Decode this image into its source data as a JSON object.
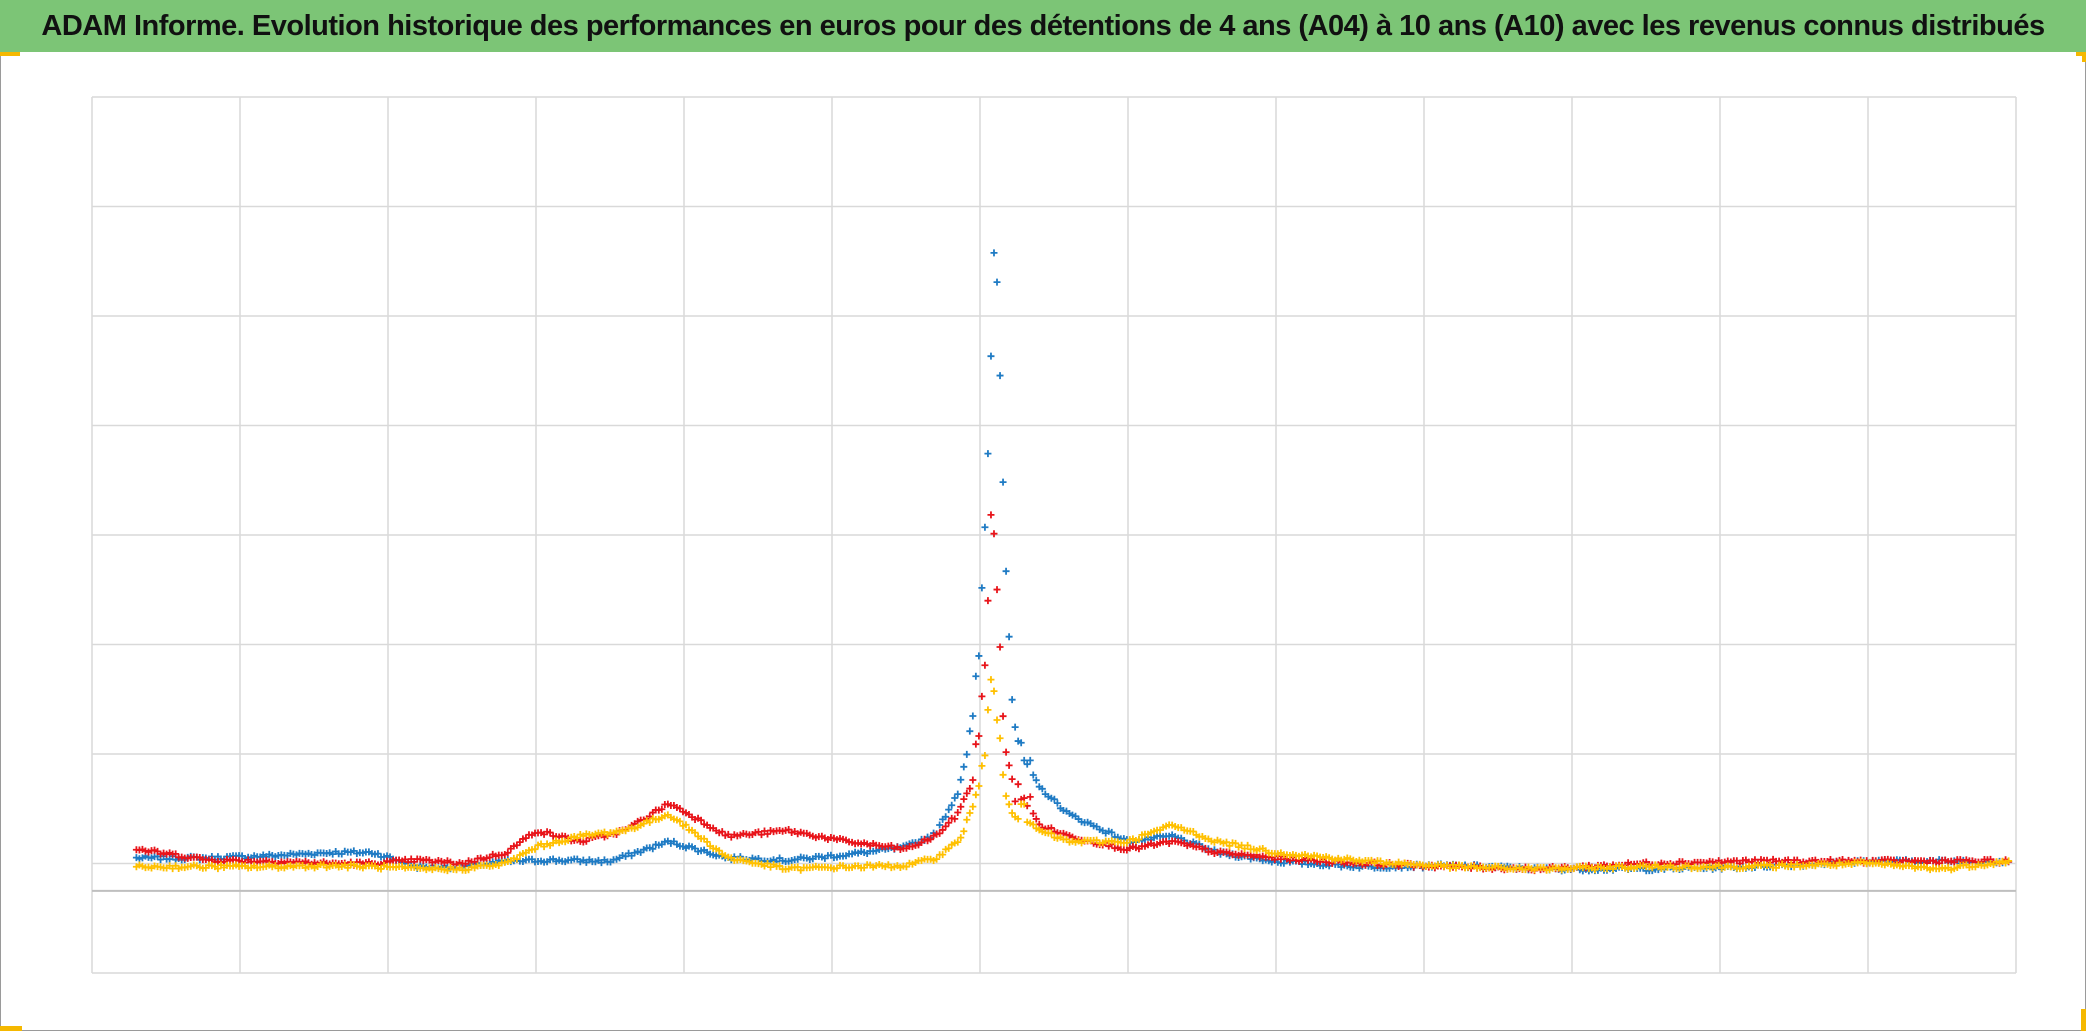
{
  "title": "ADAM Informe. Evolution historique des performances en euros pour des détentions de 4 ans (A04) à 10 ans (A10) avec les revenus connus distribués",
  "colors": {
    "title_bg": "#7cc576",
    "corner_accent": "#f5b800",
    "gridline": "#d9d9d9",
    "baseline": "#bfbfbf"
  },
  "chart_data": {
    "type": "scatter",
    "marker": "plus",
    "grid": true,
    "legend": "none",
    "title": "",
    "xlabel": "",
    "ylabel": "",
    "xlim": [
      0,
      13
    ],
    "ylim": [
      -0.75,
      7.25
    ],
    "y_baseline": 0,
    "series": [
      {
        "color": "#1f7bc4",
        "x": [
          0.3,
          0.8,
          1.2,
          1.6,
          1.9,
          2.2,
          2.5,
          2.8,
          3.1,
          3.5,
          3.9,
          4.3,
          4.7,
          5.1,
          5.5,
          5.7,
          5.85,
          5.95,
          6.0,
          6.03,
          6.06,
          6.08,
          6.1,
          6.13,
          6.15,
          6.18,
          6.22,
          6.27,
          6.4,
          6.6,
          7.0,
          7.3,
          7.6,
          8.0,
          8.6,
          9.2,
          9.8,
          10.5,
          11.2,
          12.0,
          12.5,
          12.95
        ],
        "y": [
          0.3,
          0.3,
          0.32,
          0.35,
          0.35,
          0.22,
          0.22,
          0.27,
          0.28,
          0.27,
          0.45,
          0.3,
          0.28,
          0.33,
          0.4,
          0.52,
          0.9,
          1.5,
          2.3,
          3.2,
          4.2,
          5.3,
          6.0,
          5.1,
          4.0,
          2.9,
          1.7,
          1.25,
          0.95,
          0.7,
          0.45,
          0.5,
          0.35,
          0.27,
          0.22,
          0.23,
          0.2,
          0.2,
          0.22,
          0.27,
          0.27,
          0.27
        ]
      },
      {
        "color": "#e8141a",
        "x": [
          0.3,
          0.8,
          1.2,
          1.6,
          1.9,
          2.2,
          2.5,
          2.8,
          3.0,
          3.3,
          3.6,
          3.9,
          4.3,
          4.7,
          5.1,
          5.5,
          5.7,
          5.85,
          5.95,
          6.0,
          6.03,
          6.06,
          6.08,
          6.1,
          6.13,
          6.15,
          6.18,
          6.22,
          6.27,
          6.4,
          6.6,
          7.0,
          7.3,
          7.6,
          8.0,
          8.6,
          9.2,
          9.8,
          10.5,
          11.2,
          12.0,
          12.5,
          12.95
        ],
        "y": [
          0.38,
          0.28,
          0.27,
          0.25,
          0.25,
          0.28,
          0.25,
          0.35,
          0.55,
          0.45,
          0.55,
          0.8,
          0.5,
          0.55,
          0.45,
          0.38,
          0.5,
          0.7,
          1.05,
          1.5,
          2.1,
          2.8,
          3.6,
          3.0,
          2.4,
          1.8,
          1.2,
          0.9,
          0.95,
          0.6,
          0.5,
          0.38,
          0.45,
          0.35,
          0.3,
          0.25,
          0.22,
          0.2,
          0.25,
          0.27,
          0.27,
          0.27,
          0.27
        ]
      },
      {
        "color": "#ffc000",
        "x": [
          0.3,
          0.8,
          1.2,
          1.6,
          1.9,
          2.2,
          2.5,
          2.8,
          3.0,
          3.3,
          3.6,
          3.9,
          4.3,
          4.7,
          5.1,
          5.5,
          5.7,
          5.85,
          5.95,
          6.0,
          6.03,
          6.06,
          6.08,
          6.1,
          6.13,
          6.15,
          6.18,
          6.22,
          6.27,
          6.4,
          6.6,
          7.0,
          7.3,
          7.6,
          8.0,
          8.6,
          9.2,
          9.8,
          10.5,
          11.2,
          12.0,
          12.5,
          12.95
        ],
        "y": [
          0.22,
          0.22,
          0.22,
          0.23,
          0.22,
          0.2,
          0.2,
          0.25,
          0.4,
          0.5,
          0.55,
          0.7,
          0.3,
          0.2,
          0.22,
          0.23,
          0.3,
          0.45,
          0.7,
          1.0,
          1.3,
          1.6,
          1.9,
          1.8,
          1.5,
          1.2,
          0.95,
          0.8,
          0.7,
          0.55,
          0.45,
          0.45,
          0.6,
          0.45,
          0.35,
          0.27,
          0.22,
          0.2,
          0.22,
          0.22,
          0.25,
          0.2,
          0.27
        ]
      }
    ]
  }
}
